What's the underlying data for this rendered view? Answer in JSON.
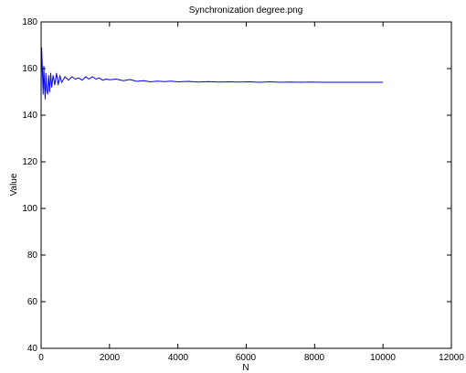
{
  "chart_data": {
    "type": "line",
    "title": "Synchronization degree.png",
    "xlabel": "N",
    "ylabel": "Value",
    "xlim": [
      0,
      12000
    ],
    "ylim": [
      40,
      180
    ],
    "x_ticks": [
      0,
      2000,
      4000,
      6000,
      8000,
      10000,
      12000
    ],
    "y_ticks": [
      40,
      60,
      80,
      100,
      120,
      140,
      160,
      180
    ],
    "x_tick_labels": [
      "0",
      "2000",
      "4000",
      "6000",
      "8000",
      "10000",
      "12000"
    ],
    "y_tick_labels": [
      "40",
      "60",
      "80",
      "100",
      "120",
      "140",
      "160",
      "180"
    ],
    "grid": false,
    "series": [
      {
        "color": "#0000ff",
        "x": [
          0,
          15,
          30,
          45,
          60,
          80,
          100,
          120,
          140,
          160,
          190,
          220,
          250,
          280,
          310,
          350,
          400,
          450,
          500,
          550,
          600,
          700,
          800,
          900,
          1000,
          1100,
          1200,
          1300,
          1400,
          1500,
          1600,
          1700,
          1800,
          1900,
          2000,
          2200,
          2400,
          2600,
          2800,
          3000,
          3200,
          3400,
          3600,
          3800,
          4000,
          4300,
          4600,
          4900,
          5200,
          5500,
          5800,
          6100,
          6400,
          6700,
          7000,
          7300,
          7600,
          7900,
          8200,
          8500,
          8800,
          9100,
          9400,
          9700,
          10000
        ],
        "y": [
          150,
          169,
          163,
          156,
          149,
          161,
          152,
          147,
          158,
          151,
          149,
          157,
          150,
          158,
          152,
          157,
          153,
          158,
          153,
          157,
          154,
          156.5,
          155,
          156.5,
          155.5,
          156,
          155,
          156.5,
          155.5,
          156.5,
          155.5,
          156,
          155,
          155.5,
          155.2,
          155.5,
          154.8,
          155.3,
          154.5,
          154.8,
          154.3,
          154.6,
          154.4,
          154.6,
          154.3,
          154.5,
          154.2,
          154.4,
          154.2,
          154.3,
          154.2,
          154.3,
          154.1,
          154.3,
          154.1,
          154.2,
          154.1,
          154.2,
          154.1,
          154.1,
          154.1,
          154.1,
          154.1,
          154.1,
          154.1
        ]
      }
    ]
  }
}
